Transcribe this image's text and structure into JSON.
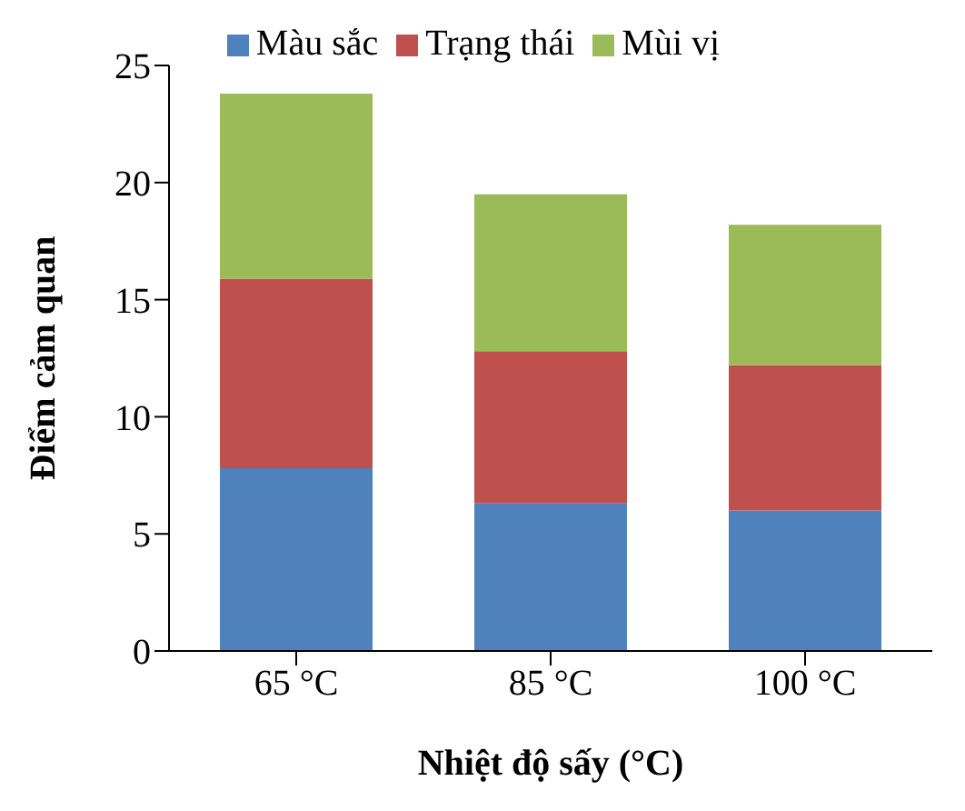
{
  "chart_data": {
    "type": "bar",
    "stacked": true,
    "xlabel": "Nhiệt độ sấy (°C)",
    "ylabel": "Điểm cảm quan",
    "categories": [
      "65 °C",
      "85 °C",
      "100 °C"
    ],
    "series": [
      {
        "name": "Màu sắc",
        "color": "#4f81bd",
        "values": [
          7.8,
          6.3,
          6.0
        ]
      },
      {
        "name": "Trạng thái",
        "color": "#c0504d",
        "values": [
          8.1,
          6.5,
          6.2
        ]
      },
      {
        "name": "Mùi vị",
        "color": "#9bbb59",
        "values": [
          7.9,
          6.7,
          6.0
        ]
      }
    ],
    "ylim": [
      0,
      25
    ],
    "yticks": [
      0,
      5,
      10,
      15,
      20,
      25
    ],
    "grid": false,
    "legend": "top"
  }
}
